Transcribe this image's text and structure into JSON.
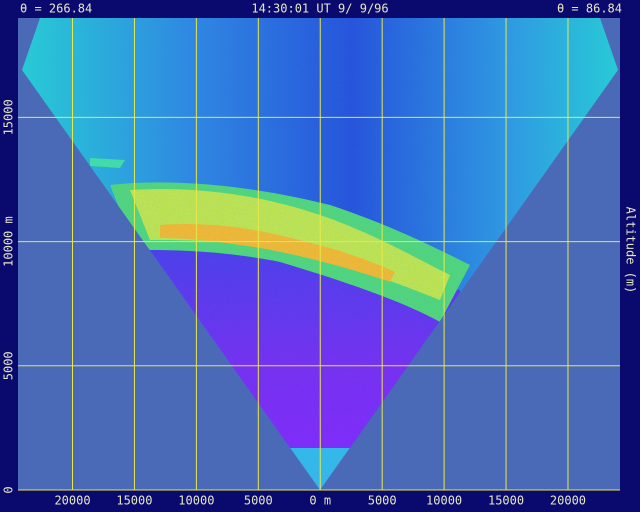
{
  "header": {
    "left": "θ = 266.84",
    "center": "14:30:01 UT  9/ 9/96",
    "right": "θ = 86.84"
  },
  "axes": {
    "y_title": "Altitude (m)",
    "xlim": [
      -24400,
      24200
    ],
    "ylim": [
      0,
      19000
    ],
    "xticks": [
      {
        "value": -20000,
        "label": "20000"
      },
      {
        "value": -15000,
        "label": "15000"
      },
      {
        "value": -10000,
        "label": "10000"
      },
      {
        "value": -5000,
        "label": "5000"
      },
      {
        "value": 0,
        "label": "0 m"
      },
      5000,
      10000,
      15000,
      20000
    ],
    "yticks": [
      0,
      5000,
      {
        "value": 10000,
        "label": "10000 m"
      },
      15000
    ]
  }
}
